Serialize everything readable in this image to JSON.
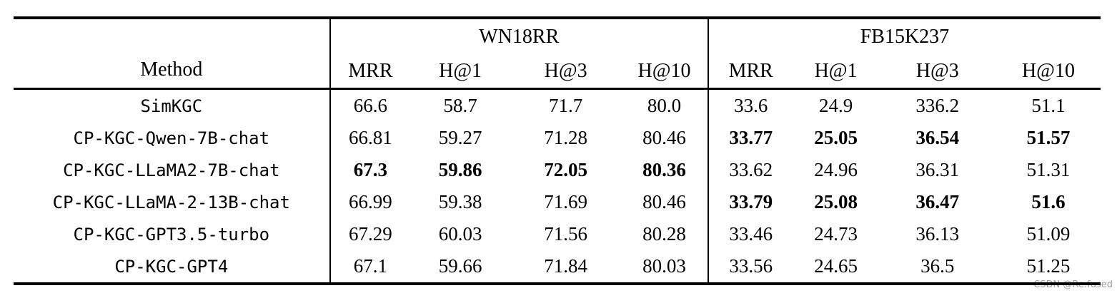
{
  "table": {
    "method_header": "Method",
    "groups": [
      {
        "label": "WN18RR",
        "metrics": [
          "MRR",
          "H@1",
          "H@3",
          "H@10"
        ]
      },
      {
        "label": "FB15K237",
        "metrics": [
          "MRR",
          "H@1",
          "H@3",
          "H@10"
        ]
      }
    ],
    "rows": [
      {
        "method": "SimKGC",
        "values": [
          "66.6",
          "58.7",
          "71.7",
          "80.0",
          "33.6",
          "24.9",
          "336.2",
          "51.1"
        ],
        "bold": [
          0,
          0,
          0,
          0,
          0,
          0,
          0,
          0
        ]
      },
      {
        "method": "CP-KGC-Qwen-7B-chat",
        "values": [
          "66.81",
          "59.27",
          "71.28",
          "80.46",
          "33.77",
          "25.05",
          "36.54",
          "51.57"
        ],
        "bold": [
          0,
          0,
          0,
          0,
          1,
          1,
          1,
          1
        ]
      },
      {
        "method": "CP-KGC-LLaMA2-7B-chat",
        "values": [
          "67.3",
          "59.86",
          "72.05",
          "80.36",
          "33.62",
          "24.96",
          "36.31",
          "51.31"
        ],
        "bold": [
          1,
          1,
          1,
          1,
          0,
          0,
          0,
          0
        ]
      },
      {
        "method": "CP-KGC-LLaMA-2-13B-chat",
        "values": [
          "66.99",
          "59.38",
          "71.69",
          "80.46",
          "33.79",
          "25.08",
          "36.47",
          "51.6"
        ],
        "bold": [
          0,
          0,
          0,
          0,
          1,
          1,
          1,
          1
        ]
      },
      {
        "method": "CP-KGC-GPT3.5-turbo",
        "values": [
          "67.29",
          "60.03",
          "71.56",
          "80.28",
          "33.46",
          "24.73",
          "36.13",
          "51.09"
        ],
        "bold": [
          0,
          0,
          0,
          0,
          0,
          0,
          0,
          0
        ]
      },
      {
        "method": "CP-KGC-GPT4",
        "values": [
          "67.1",
          "59.66",
          "71.84",
          "80.03",
          "33.56",
          "24.65",
          "36.5",
          "51.25"
        ],
        "bold": [
          0,
          0,
          0,
          0,
          0,
          0,
          0,
          0
        ]
      }
    ]
  },
  "watermark": "CSDN @Re:fused"
}
